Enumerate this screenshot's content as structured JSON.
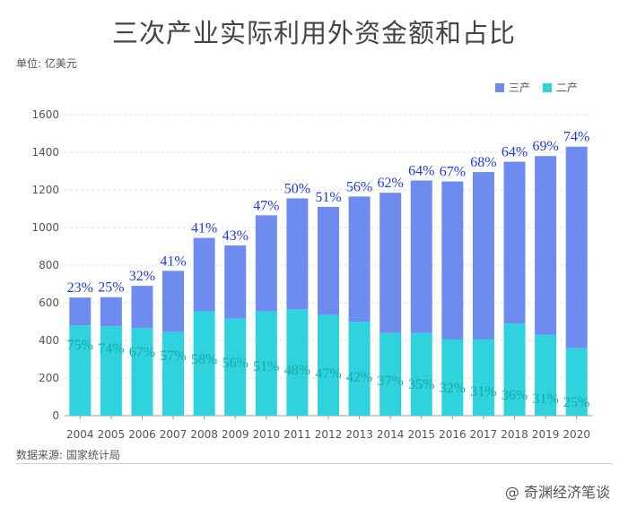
{
  "title": "三次产业实际利用外资金额和占比",
  "unit": "单位: 亿美元",
  "source": "数据来源: 国家统计局",
  "watermark": "@ 奇渊经济笔谈",
  "colors": {
    "tertiary": "#6e8cf0",
    "secondary": "#2ed3de",
    "tertiary_label": "#1f3bdc",
    "secondary_label": "#1aa8a3",
    "grid": "#dddddd",
    "axis": "#555555"
  },
  "chart_data": {
    "type": "bar",
    "stacked": true,
    "categories": [
      "2004",
      "2005",
      "2006",
      "2007",
      "2008",
      "2009",
      "2010",
      "2011",
      "2012",
      "2013",
      "2014",
      "2015",
      "2016",
      "2017",
      "2018",
      "2019",
      "2020"
    ],
    "series": [
      {
        "name": "二产",
        "values": [
          480,
          475,
          465,
          445,
          555,
          515,
          555,
          565,
          535,
          500,
          440,
          440,
          405,
          405,
          490,
          430,
          360
        ],
        "labels": [
          "75%",
          "74%",
          "67%",
          "57%",
          "58%",
          "56%",
          "51%",
          "48%",
          "47%",
          "42%",
          "37%",
          "35%",
          "32%",
          "31%",
          "36%",
          "31%",
          "25%"
        ]
      },
      {
        "name": "三产",
        "values": [
          148,
          155,
          225,
          325,
          390,
          390,
          510,
          590,
          575,
          665,
          745,
          810,
          840,
          890,
          860,
          950,
          1070
        ],
        "labels": [
          "23%",
          "25%",
          "32%",
          "41%",
          "41%",
          "43%",
          "47%",
          "50%",
          "51%",
          "56%",
          "62%",
          "64%",
          "67%",
          "68%",
          "64%",
          "69%",
          "74%"
        ]
      }
    ],
    "ylim": [
      0,
      1600
    ],
    "yticks": [
      0,
      200,
      400,
      600,
      800,
      1000,
      1200,
      1400,
      1600
    ],
    "grid": true,
    "legend": "top-right"
  }
}
